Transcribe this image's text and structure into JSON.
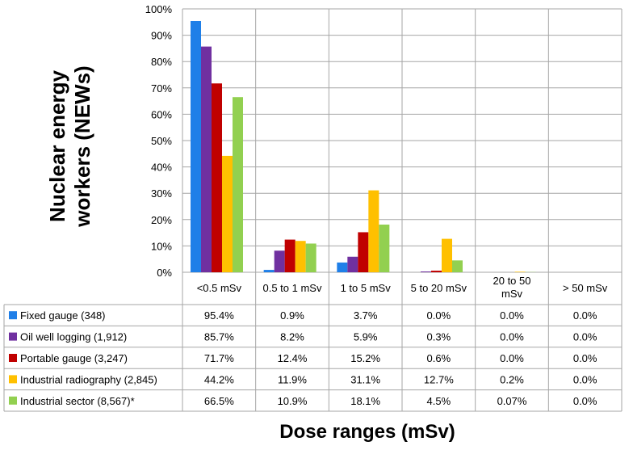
{
  "chart_data": {
    "type": "bar",
    "categories": [
      "<0.5 mSv",
      "0.5 to 1 mSv",
      "1 to 5 mSv",
      "5 to 20 mSv",
      "20 to 50 mSv",
      "> 50 mSv"
    ],
    "y_ticks": [
      "0%",
      "10%",
      "20%",
      "30%",
      "40%",
      "50%",
      "60%",
      "70%",
      "80%",
      "90%",
      "100%"
    ],
    "ylim": [
      0,
      100
    ],
    "ylabel": "Nuclear energy workers (NEWs)",
    "xlabel": "Dose ranges (mSv)",
    "grid": true,
    "legend": "table-rows",
    "series": [
      {
        "name": "Fixed gauge (348)",
        "color": "#1f7fe8",
        "values": [
          95.4,
          0.9,
          3.7,
          0.0,
          0.0,
          0.0
        ],
        "labels": [
          "95.4%",
          "0.9%",
          "3.7%",
          "0.0%",
          "0.0%",
          "0.0%"
        ]
      },
      {
        "name": "Oil well logging (1,912)",
        "color": "#7030a0",
        "values": [
          85.7,
          8.2,
          5.9,
          0.3,
          0.0,
          0.0
        ],
        "labels": [
          "85.7%",
          "8.2%",
          "5.9%",
          "0.3%",
          "0.0%",
          "0.0%"
        ]
      },
      {
        "name": "Portable gauge (3,247)",
        "color": "#c00000",
        "values": [
          71.7,
          12.4,
          15.2,
          0.6,
          0.0,
          0.0
        ],
        "labels": [
          "71.7%",
          "12.4%",
          "15.2%",
          "0.6%",
          "0.0%",
          "0.0%"
        ]
      },
      {
        "name": "Industrial radiography (2,845)",
        "color": "#ffc000",
        "values": [
          44.2,
          11.9,
          31.1,
          12.7,
          0.2,
          0.0
        ],
        "labels": [
          "44.2%",
          "11.9%",
          "31.1%",
          "12.7%",
          "0.2%",
          "0.0%"
        ]
      },
      {
        "name": "Industrial sector (8,567)*",
        "color": "#92d050",
        "values": [
          66.5,
          10.9,
          18.1,
          4.5,
          0.07,
          0.0
        ],
        "labels": [
          "66.5%",
          "10.9%",
          "18.1%",
          "4.5%",
          "0.07%",
          "0.0%"
        ]
      }
    ]
  }
}
